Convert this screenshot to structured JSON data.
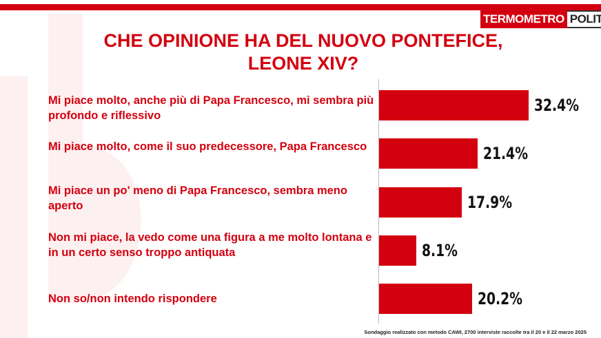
{
  "logo": {
    "part1": "TERMOMETRO",
    "part2": "POLITICO"
  },
  "title_lines": [
    "CHE OPINIONE HA DEL NUOVO PONTEFICE,",
    "LEONE XIV?"
  ],
  "footnote": "Sondaggio realizzato con metodo CAWI, 2700 interviste raccolte tra il 20 e il 22 marzo 2025",
  "colors": {
    "accent": "#d3000f",
    "value_text": "#111111"
  },
  "chart_data": {
    "type": "bar",
    "orientation": "horizontal",
    "title": "CHE OPINIONE HA DEL NUOVO PONTEFICE, LEONE XIV?",
    "categories": [
      "Mi piace molto, anche più di Papa Francesco, mi sembra più profondo e riflessivo",
      "Mi piace molto, come il suo predecessore, Papa Francesco",
      "Mi piace un po' meno di Papa Francesco, sembra meno aperto",
      "Non mi piace, la vedo come una figura a me molto lontana e in un certo senso troppo antiquata",
      "Non so/non intendo rispondere"
    ],
    "values": [
      32.4,
      21.4,
      17.9,
      8.1,
      20.2
    ],
    "value_labels": [
      "32.4%",
      "21.4%",
      "17.9%",
      "8.1%",
      "20.2%"
    ],
    "unit": "%",
    "xlim": [
      0,
      40
    ],
    "grid": false,
    "legend": "none"
  }
}
